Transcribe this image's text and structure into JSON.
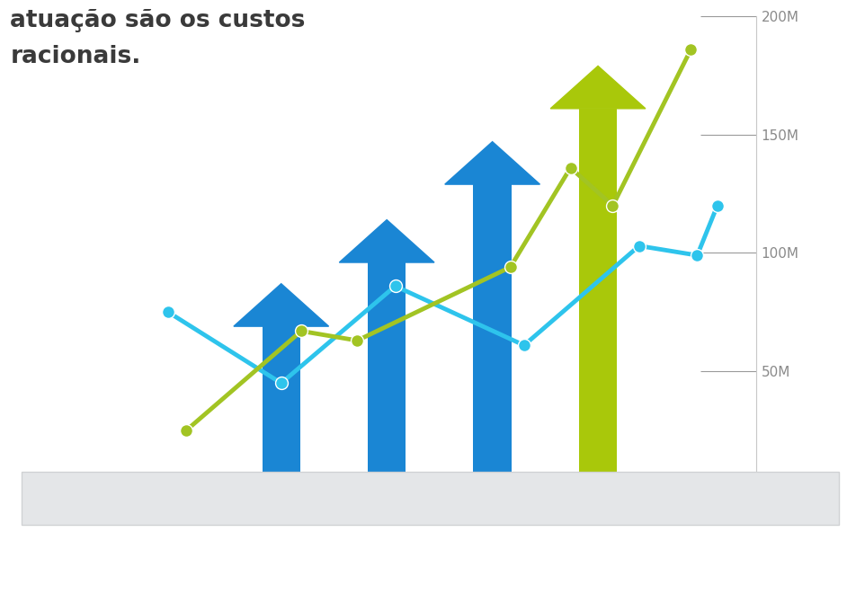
{
  "chart_data": {
    "type": "bar",
    "annotations": [
      "atuação são os custos",
      "racionais."
    ],
    "x": [
      1,
      2,
      3,
      4
    ],
    "values": [
      87,
      114,
      147,
      179
    ],
    "colors": [
      "#1a86d4",
      "#1a86d4",
      "#1a86d4",
      "#a9c80a"
    ],
    "series": [
      {
        "type": "line",
        "color": "#2ec4ec",
        "marker": "o",
        "x": [
          -0.07,
          1.0,
          2.08,
          3.3,
          4.39,
          4.94,
          5.13
        ],
        "values": [
          75,
          45,
          86,
          61,
          103,
          99,
          120
        ]
      },
      {
        "type": "line",
        "color": "#a2c423",
        "marker": "o",
        "x": [
          0.1,
          1.19,
          1.72,
          3.17,
          3.74,
          4.14,
          4.88
        ],
        "values": [
          25,
          67,
          63,
          94,
          136,
          120,
          186
        ]
      }
    ],
    "xlim": [
      -0.5,
      5.5
    ],
    "ylim": [
      0,
      200
    ],
    "yticks": [
      {
        "value": 50,
        "label": "50M"
      },
      {
        "value": 100,
        "label": "100M"
      },
      {
        "value": 150,
        "label": "150M"
      },
      {
        "value": 200,
        "label": "200M"
      }
    ],
    "tick_labels": "y",
    "grid": false
  }
}
